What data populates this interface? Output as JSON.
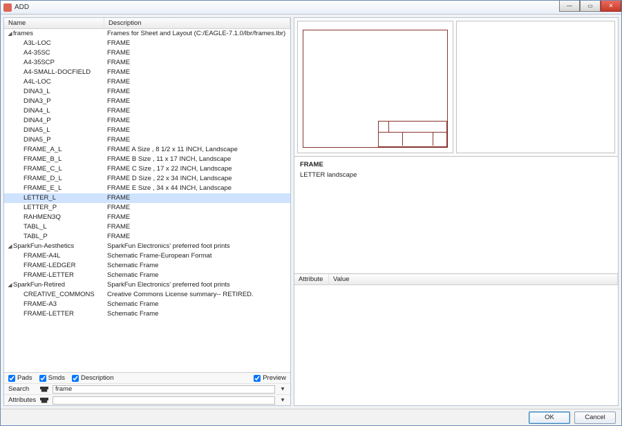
{
  "window": {
    "title": "ADD"
  },
  "columns": {
    "name": "Name",
    "description": "Description"
  },
  "tree": [
    {
      "type": "group",
      "name": "frames",
      "desc": "Frames for Sheet and Layout (C:/EAGLE-7.1.0/lbr/frames.lbr)",
      "children": [
        {
          "name": "A3L-LOC",
          "desc": "FRAME"
        },
        {
          "name": "A4-35SC",
          "desc": "FRAME"
        },
        {
          "name": "A4-35SCP",
          "desc": "FRAME"
        },
        {
          "name": "A4-SMALL-DOCFIELD",
          "desc": "FRAME"
        },
        {
          "name": "A4L-LOC",
          "desc": "FRAME"
        },
        {
          "name": "DINA3_L",
          "desc": "FRAME"
        },
        {
          "name": "DINA3_P",
          "desc": "FRAME"
        },
        {
          "name": "DINA4_L",
          "desc": "FRAME"
        },
        {
          "name": "DINA4_P",
          "desc": "FRAME"
        },
        {
          "name": "DINA5_L",
          "desc": "FRAME"
        },
        {
          "name": "DINA5_P",
          "desc": "FRAME"
        },
        {
          "name": "FRAME_A_L",
          "desc": "FRAME A Size , 8 1/2 x 11 INCH, Landscape"
        },
        {
          "name": "FRAME_B_L",
          "desc": "FRAME B Size , 11 x 17 INCH, Landscape"
        },
        {
          "name": "FRAME_C_L",
          "desc": "FRAME C Size , 17 x 22 INCH, Landscape"
        },
        {
          "name": "FRAME_D_L",
          "desc": "FRAME D Size , 22 x 34 INCH, Landscape"
        },
        {
          "name": "FRAME_E_L",
          "desc": "FRAME E Size , 34 x 44 INCH, Landscape"
        },
        {
          "name": "LETTER_L",
          "desc": "FRAME",
          "selected": true
        },
        {
          "name": "LETTER_P",
          "desc": "FRAME"
        },
        {
          "name": "RAHMEN3Q",
          "desc": "FRAME"
        },
        {
          "name": "TABL_L",
          "desc": "FRAME"
        },
        {
          "name": "TABL_P",
          "desc": "FRAME"
        }
      ]
    },
    {
      "type": "group",
      "name": "SparkFun-Aesthetics",
      "desc": "SparkFun Electronics' preferred foot prints",
      "children": [
        {
          "name": "FRAME-A4L",
          "desc": "Schematic Frame-European Format"
        },
        {
          "name": "FRAME-LEDGER",
          "desc": "Schematic Frame"
        },
        {
          "name": "FRAME-LETTER",
          "desc": "Schematic Frame"
        }
      ]
    },
    {
      "type": "group",
      "name": "SparkFun-Retired",
      "desc": "SparkFun Electronics' preferred foot prints",
      "children": [
        {
          "name": "CREATIVE_COMMONS",
          "desc": "Creative Commons License summary-- RETIRED."
        },
        {
          "name": "FRAME-A3",
          "desc": "Schematic Frame"
        },
        {
          "name": "FRAME-LETTER",
          "desc": "Schematic Frame"
        }
      ]
    }
  ],
  "options": {
    "pads": {
      "label": "Pads",
      "checked": true
    },
    "smds": {
      "label": "Smds",
      "checked": true
    },
    "description": {
      "label": "Description",
      "checked": true
    },
    "preview": {
      "label": "Preview",
      "checked": true
    }
  },
  "search": {
    "label": "Search",
    "value": "frame"
  },
  "attributes_label": "Attributes",
  "preview": {
    "title": "FRAME",
    "subtitle": "LETTER landscape"
  },
  "attr_table": {
    "col_attr": "Attribute",
    "col_val": "Value"
  },
  "buttons": {
    "ok": "OK",
    "cancel": "Cancel"
  },
  "colors": {
    "frame_border": "#86332e",
    "selection": "#cfe3ff"
  }
}
